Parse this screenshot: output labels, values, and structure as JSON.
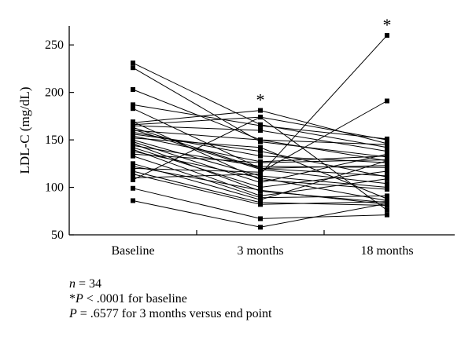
{
  "chart_data": {
    "type": "line",
    "ylabel": "LDL-C (mg/dL)",
    "xlabel": "",
    "categories": [
      "Baseline",
      "3 months",
      "18 months"
    ],
    "ylim": [
      50,
      270
    ],
    "yticks": [
      50,
      100,
      150,
      200,
      250
    ],
    "grid": false,
    "legend": "none",
    "significance": [
      {
        "category": "3 months",
        "label": "*"
      },
      {
        "category": "18 months",
        "label": "*"
      }
    ],
    "series": [
      {
        "values": [
          231,
          166,
          142
        ]
      },
      {
        "values": [
          226,
          148,
          132
        ]
      },
      {
        "values": [
          203,
          150,
          128
        ]
      },
      {
        "values": [
          187,
          165,
          151
        ]
      },
      {
        "values": [
          183,
          120,
          112
        ]
      },
      {
        "values": [
          169,
          108,
          98
        ]
      },
      {
        "values": [
          168,
          181,
          146
        ]
      },
      {
        "values": [
          166,
          174,
          150
        ]
      },
      {
        "values": [
          165,
          160,
          138
        ]
      },
      {
        "values": [
          163,
          120,
          123
        ]
      },
      {
        "values": [
          161,
          119,
          104
        ]
      },
      {
        "values": [
          160,
          150,
          145
        ]
      },
      {
        "values": [
          158,
          133,
          126
        ]
      },
      {
        "values": [
          156,
          138,
          111
        ]
      },
      {
        "values": [
          154,
          127,
          133
        ]
      },
      {
        "values": [
          152,
          142,
          88
        ]
      },
      {
        "values": [
          150,
          112,
          100
        ]
      },
      {
        "values": [
          148,
          105,
          135
        ]
      },
      {
        "values": [
          146,
          96,
          84
        ]
      },
      {
        "values": [
          144,
          122,
          121
        ]
      },
      {
        "values": [
          142,
          100,
          117
        ]
      },
      {
        "values": [
          140,
          91,
          109
        ]
      },
      {
        "values": [
          138,
          110,
          86
        ]
      },
      {
        "values": [
          135,
          126,
          129
        ]
      },
      {
        "values": [
          133,
          89,
          91
        ]
      },
      {
        "values": [
          125,
          87,
          128
        ]
      },
      {
        "values": [
          122,
          97,
          82
        ]
      },
      {
        "values": [
          120,
          116,
          191
        ]
      },
      {
        "values": [
          117,
          84,
          81
        ]
      },
      {
        "values": [
          114,
          82,
          85
        ]
      },
      {
        "values": [
          110,
          114,
          260
        ]
      },
      {
        "values": [
          108,
          174,
          76
        ]
      },
      {
        "values": [
          99,
          67,
          71
        ]
      },
      {
        "values": [
          86,
          58,
          83
        ]
      }
    ]
  },
  "notes": {
    "n_label": "n",
    "n_value": " = 34",
    "star": "*",
    "p_label": "P",
    "line2_rest": " < .0001 for baseline",
    "line3_rest": " = .6577 for 3 months versus end point"
  }
}
